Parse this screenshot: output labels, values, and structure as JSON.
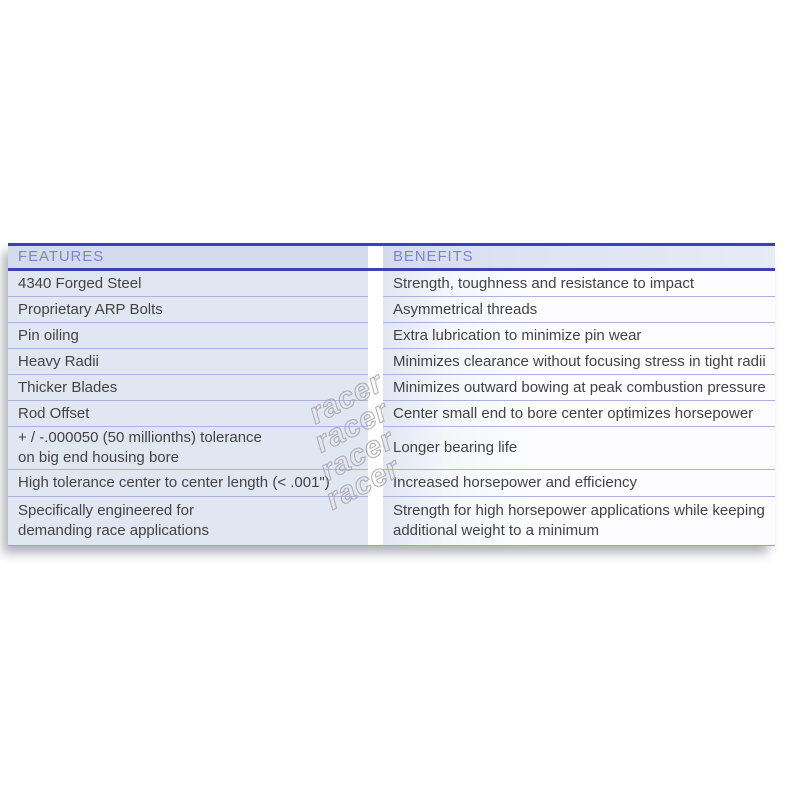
{
  "table": {
    "columns": [
      "FEATURES",
      "BENEFITS"
    ],
    "rows": [
      {
        "feature": "4340 Forged Steel",
        "benefit": "Strength, toughness and resistance to impact"
      },
      {
        "feature": "Proprietary ARP Bolts",
        "benefit": "Asymmetrical threads"
      },
      {
        "feature": "Pin oiling",
        "benefit": "Extra lubrication to minimize pin wear"
      },
      {
        "feature": "Heavy Radii",
        "benefit": "Minimizes clearance without focusing stress in tight radii"
      },
      {
        "feature": "Thicker Blades",
        "benefit": "Minimizes outward bowing at peak combustion pressure"
      },
      {
        "feature": "Rod Offset",
        "benefit": "Center small end to bore center optimizes horsepower"
      },
      {
        "feature": "+ / -.000050 (50 millionths) tolerance\non big end housing bore",
        "benefit": "Longer bearing life"
      },
      {
        "feature": "High tolerance center to center length (< .001\")",
        "benefit": "Increased horsepower and efficiency"
      },
      {
        "feature": "Specifically engineered for\ndemanding race applications",
        "benefit": "Strength for high horsepower applications while keeping\nadditional weight to a minimum"
      }
    ]
  },
  "watermark": {
    "text": "racer"
  },
  "colors": {
    "rule_dark_blue": "#3c42b4",
    "header_text": "#7a85d0",
    "header_band": "#d5dbee",
    "row_tint": "#e1e6f3",
    "row_separator": "#a9b3dc",
    "body_text": "#434343",
    "watermark_gray": "#a6a6ab"
  }
}
